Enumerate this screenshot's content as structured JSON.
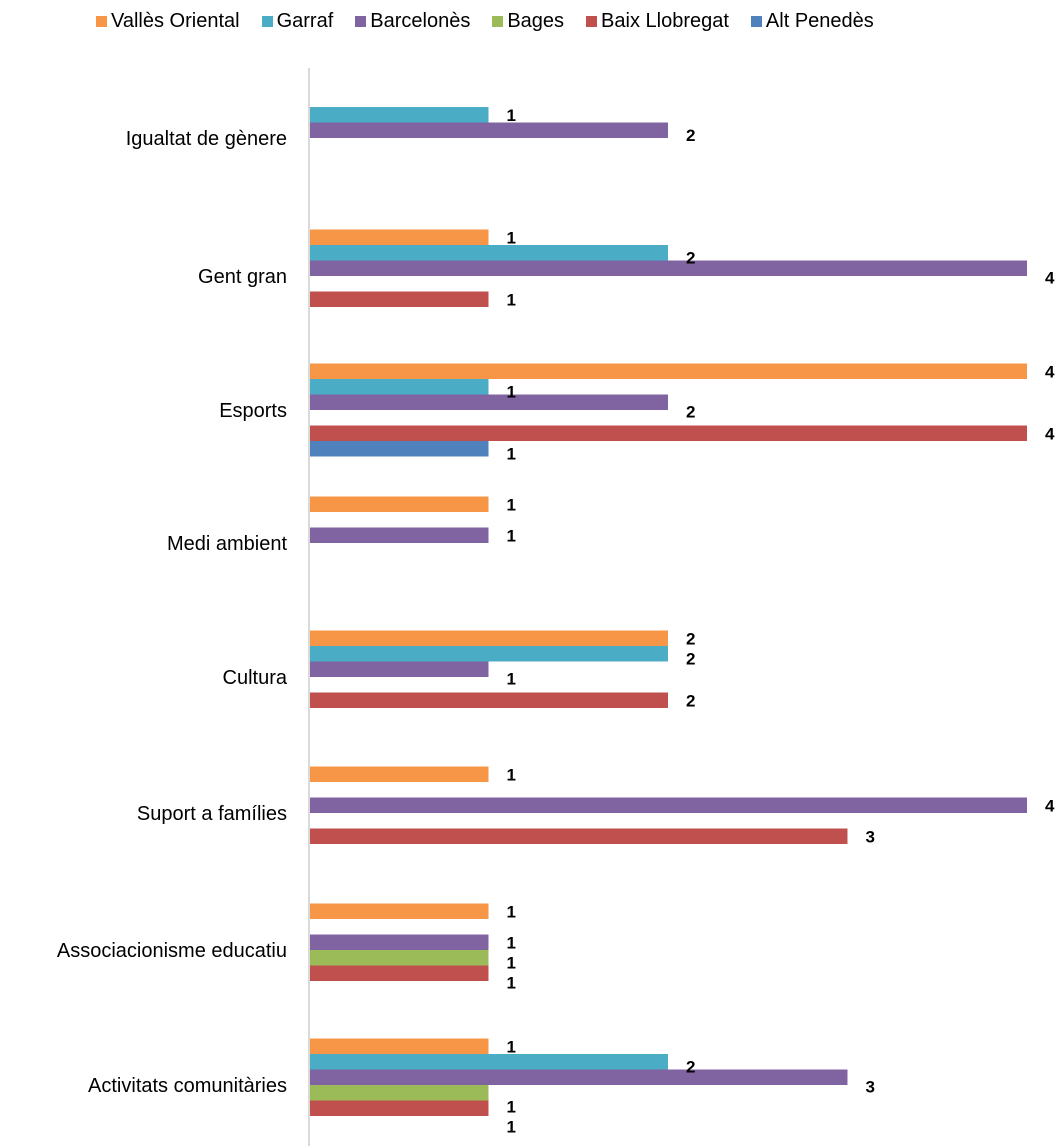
{
  "chart_data": {
    "type": "bar",
    "orientation": "horizontal",
    "categories": [
      "Igualtat de gènere",
      "Gent gran",
      "Esports",
      "Medi ambient",
      "Cultura",
      "Suport a famílies",
      "Associacionisme educatiu",
      "Activitats comunitàries"
    ],
    "series": [
      {
        "name": "Vallès Oriental",
        "color": "#F79646",
        "values": [
          null,
          1,
          4,
          1,
          2,
          1,
          1,
          1
        ]
      },
      {
        "name": "Garraf",
        "color": "#4BACC6",
        "values": [
          1,
          2,
          1,
          null,
          2,
          null,
          null,
          2
        ]
      },
      {
        "name": "Barcelonès",
        "color": "#8064A2",
        "values": [
          2,
          4,
          2,
          1,
          1,
          4,
          1,
          3
        ]
      },
      {
        "name": "Bages",
        "color": "#9BBB59",
        "values": [
          null,
          null,
          null,
          null,
          null,
          null,
          1,
          1
        ]
      },
      {
        "name": "Baix Llobregat",
        "color": "#C0504D",
        "values": [
          null,
          1,
          4,
          null,
          2,
          3,
          1,
          1
        ]
      },
      {
        "name": "Alt Penedès",
        "color": "#4F81BD",
        "values": [
          null,
          null,
          1,
          null,
          null,
          null,
          null,
          null
        ]
      }
    ],
    "xlim": [
      0,
      4
    ],
    "legend_position": "top",
    "grid": false
  }
}
